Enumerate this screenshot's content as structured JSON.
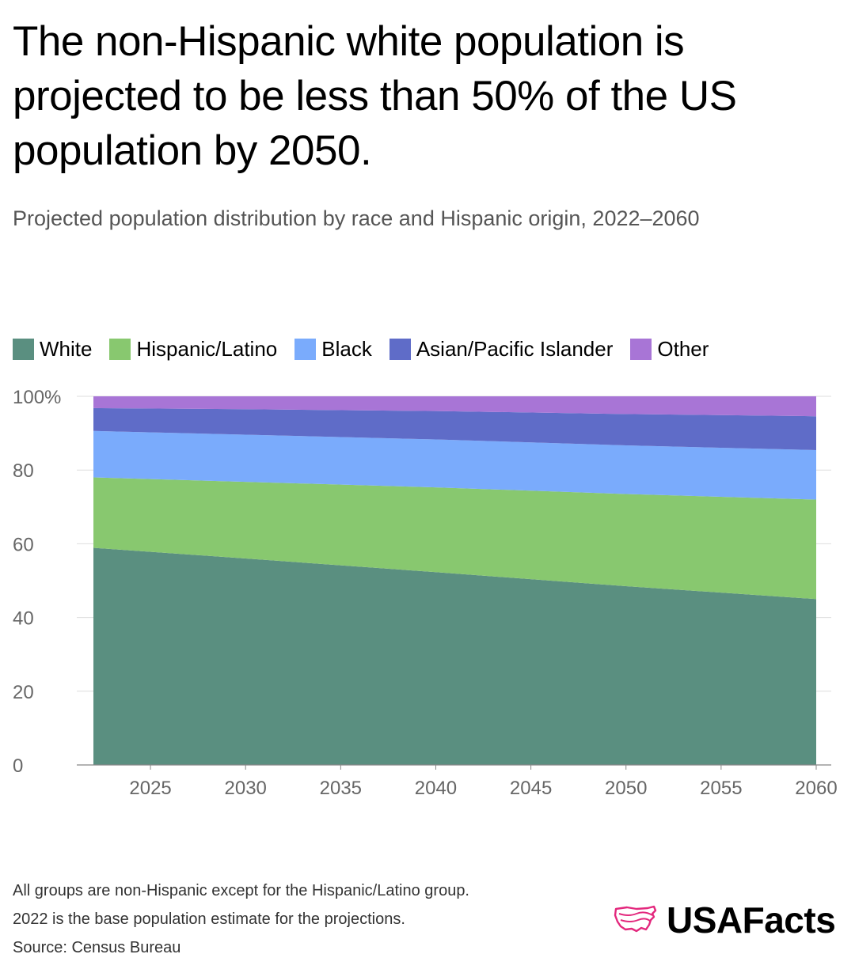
{
  "header": {
    "title": "The non-Hispanic white population is projected to be less than 50% of the US population by 2050.",
    "subtitle": "Projected population distribution by race and Hispanic origin, 2022–2060"
  },
  "chart_data": {
    "type": "area",
    "stacked": true,
    "x": [
      2022,
      2030,
      2040,
      2050,
      2060
    ],
    "series": [
      {
        "name": "White",
        "color": "#5a8f80",
        "values": [
          58.9,
          56.0,
          52.3,
          48.5,
          45.0
        ]
      },
      {
        "name": "Hispanic/Latino",
        "color": "#88c86f",
        "values": [
          19.1,
          20.8,
          23.0,
          25.0,
          27.0
        ]
      },
      {
        "name": "Black",
        "color": "#7aabfc",
        "values": [
          12.6,
          12.8,
          13.0,
          13.2,
          13.4
        ]
      },
      {
        "name": "Asian/Pacific Islander",
        "color": "#5f6cc8",
        "values": [
          6.2,
          6.9,
          7.7,
          8.5,
          9.2
        ]
      },
      {
        "name": "Other",
        "color": "#a875d6",
        "values": [
          3.2,
          3.5,
          4.0,
          4.8,
          5.4
        ]
      }
    ],
    "xticks": [
      2025,
      2030,
      2035,
      2040,
      2045,
      2050,
      2055,
      2060
    ],
    "yticks": [
      0,
      20,
      40,
      60,
      80,
      100
    ],
    "ytick_labels": [
      "0",
      "20",
      "40",
      "60",
      "80",
      "100%"
    ],
    "xlim": [
      2022,
      2060
    ],
    "ylim": [
      0,
      100
    ],
    "grid": true,
    "legend_position": "top-left"
  },
  "footer": {
    "notes": [
      "All groups are non-Hispanic except for the Hispanic/Latino group.",
      "2022 is the base population estimate for the projections.",
      "Source: Census Bureau"
    ]
  },
  "brand": {
    "name": "USAFacts",
    "icon": "usa-map-icon",
    "accent": "#e3287d"
  }
}
